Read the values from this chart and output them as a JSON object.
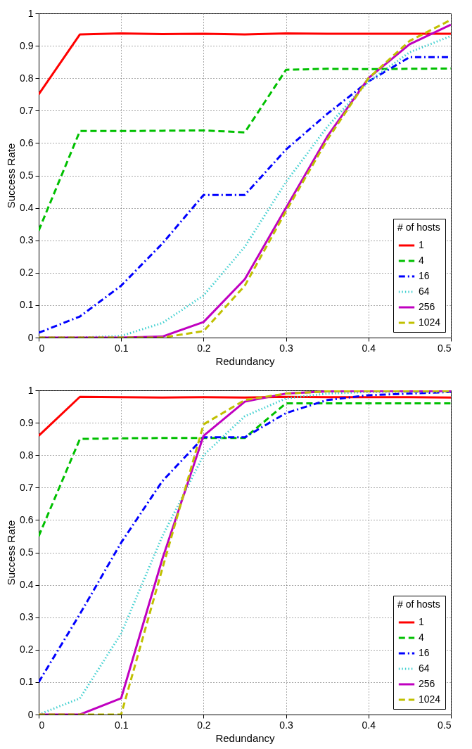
{
  "chart_data": [
    {
      "type": "line",
      "xlabel": "Redundancy",
      "ylabel": "Success Rate",
      "legend_title": "# of hosts",
      "legend": "bottom right",
      "grid": true,
      "x": [
        0,
        0.05,
        0.1,
        0.15,
        0.2,
        0.25,
        0.3,
        0.35,
        0.4,
        0.45,
        0.5
      ],
      "xlim": [
        0,
        0.5
      ],
      "xticks": [
        0,
        0.1,
        0.2,
        0.3,
        0.4,
        0.5
      ],
      "ylim": [
        0,
        1
      ],
      "yticks": [
        0,
        0.1,
        0.2,
        0.3,
        0.4,
        0.5,
        0.6,
        0.7,
        0.8,
        0.9,
        1
      ],
      "series": [
        {
          "name": "1",
          "color": "#ff0000",
          "line_style": "solid",
          "values": [
            0.75,
            0.935,
            0.938,
            0.936,
            0.937,
            0.935,
            0.938,
            0.937,
            0.937,
            0.937,
            0.937
          ]
        },
        {
          "name": "4",
          "color": "#00c000",
          "line_style": "dashed",
          "values": [
            0.33,
            0.637,
            0.637,
            0.638,
            0.639,
            0.633,
            0.826,
            0.829,
            0.828,
            0.829,
            0.83
          ]
        },
        {
          "name": "16",
          "color": "#0000ff",
          "line_style": "dashdot",
          "values": [
            0.015,
            0.065,
            0.16,
            0.29,
            0.44,
            0.44,
            0.58,
            0.69,
            0.79,
            0.865,
            0.865
          ]
        },
        {
          "name": "64",
          "color": "#40d0d0",
          "line_style": "dotted",
          "values": [
            0,
            0,
            0.005,
            0.045,
            0.13,
            0.28,
            0.48,
            0.65,
            0.79,
            0.88,
            0.93
          ]
        },
        {
          "name": "256",
          "color": "#c000c0",
          "line_style": "solid",
          "values": [
            0,
            0,
            0,
            0.003,
            0.048,
            0.18,
            0.4,
            0.62,
            0.8,
            0.905,
            0.965
          ]
        },
        {
          "name": "1024",
          "color": "#c0c000",
          "line_style": "dashed",
          "values": [
            0,
            0,
            0,
            0,
            0.02,
            0.16,
            0.39,
            0.61,
            0.8,
            0.915,
            0.98
          ]
        }
      ]
    },
    {
      "type": "line",
      "xlabel": "Redundancy",
      "ylabel": "Success Rate",
      "legend_title": "# of hosts",
      "legend": "bottom right",
      "grid": true,
      "x": [
        0,
        0.05,
        0.1,
        0.15,
        0.2,
        0.25,
        0.3,
        0.35,
        0.4,
        0.45,
        0.5
      ],
      "xlim": [
        0,
        0.5
      ],
      "xticks": [
        0,
        0.1,
        0.2,
        0.3,
        0.4,
        0.5
      ],
      "ylim": [
        0,
        1
      ],
      "yticks": [
        0,
        0.1,
        0.2,
        0.3,
        0.4,
        0.5,
        0.6,
        0.7,
        0.8,
        0.9,
        1
      ],
      "series": [
        {
          "name": "1",
          "color": "#ff0000",
          "line_style": "solid",
          "values": [
            0.86,
            0.98,
            0.979,
            0.978,
            0.979,
            0.978,
            0.98,
            0.979,
            0.979,
            0.979,
            0.978
          ]
        },
        {
          "name": "4",
          "color": "#00c000",
          "line_style": "dashed",
          "values": [
            0.55,
            0.85,
            0.852,
            0.853,
            0.853,
            0.853,
            0.96,
            0.96,
            0.96,
            0.96,
            0.96
          ]
        },
        {
          "name": "16",
          "color": "#0000ff",
          "line_style": "dashdot",
          "values": [
            0.1,
            0.31,
            0.53,
            0.72,
            0.855,
            0.855,
            0.93,
            0.97,
            0.985,
            0.99,
            0.995
          ]
        },
        {
          "name": "64",
          "color": "#40d0d0",
          "line_style": "dotted",
          "values": [
            0,
            0.05,
            0.25,
            0.55,
            0.8,
            0.92,
            0.975,
            0.99,
            0.995,
            0.995,
            0.995
          ]
        },
        {
          "name": "256",
          "color": "#c000c0",
          "line_style": "solid",
          "values": [
            0,
            0,
            0.05,
            0.48,
            0.86,
            0.965,
            0.99,
            0.997,
            0.998,
            0.998,
            0.998
          ]
        },
        {
          "name": "1024",
          "color": "#c0c000",
          "line_style": "dashed",
          "values": [
            0,
            0,
            0,
            0.45,
            0.895,
            0.97,
            0.99,
            0.997,
            0.998,
            0.998,
            0.998
          ]
        }
      ]
    }
  ]
}
